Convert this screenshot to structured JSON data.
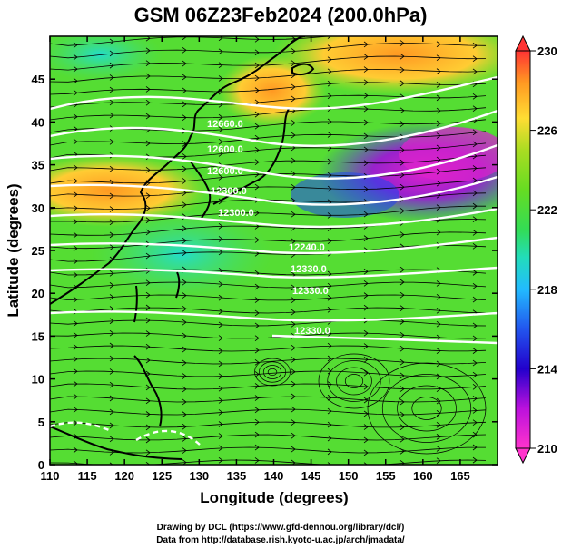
{
  "title": "GSM 06Z23Feb2024 (200.0hPa)",
  "x_axis": {
    "label": "Longitude (degrees)",
    "ticks": [
      "110",
      "115",
      "120",
      "125",
      "130",
      "135",
      "140",
      "145",
      "150",
      "155",
      "160",
      "165"
    ],
    "range": [
      110,
      170
    ]
  },
  "y_axis": {
    "label": "Latitude  (degrees)",
    "ticks": [
      "0",
      "5",
      "10",
      "15",
      "20",
      "25",
      "30",
      "35",
      "40",
      "45"
    ],
    "range": [
      0,
      50
    ]
  },
  "colorbar": {
    "ticks": [
      "210",
      "214",
      "218",
      "222",
      "226",
      "230"
    ],
    "range": [
      210,
      230
    ],
    "colors": [
      "#ff33cc",
      "#cc22dd",
      "#5500cc",
      "#2244ee",
      "#22aaff",
      "#22ddcc",
      "#44dd44",
      "#66dd22",
      "#aadd22",
      "#ffdd33",
      "#ff9922",
      "#ff4433"
    ]
  },
  "contour_labels": [
    "12660.0",
    "12600.0",
    "12600.0",
    "12300.0",
    "12240.0",
    "12330.0",
    "12330.0",
    "12330.0",
    "12300.0"
  ],
  "footer": {
    "line1": "Drawing by DCL (https://www.gfd-dennou.org/library/dcl/)",
    "line2": "Data from http://database.rish.kyoto-u.ac.jp/arch/jmadata/"
  },
  "colors": {
    "background_field": "#55dd33",
    "jet_core": "#dd22cc",
    "warm": "#ff9922",
    "contour": "#ffffff",
    "coast": "#000000"
  }
}
